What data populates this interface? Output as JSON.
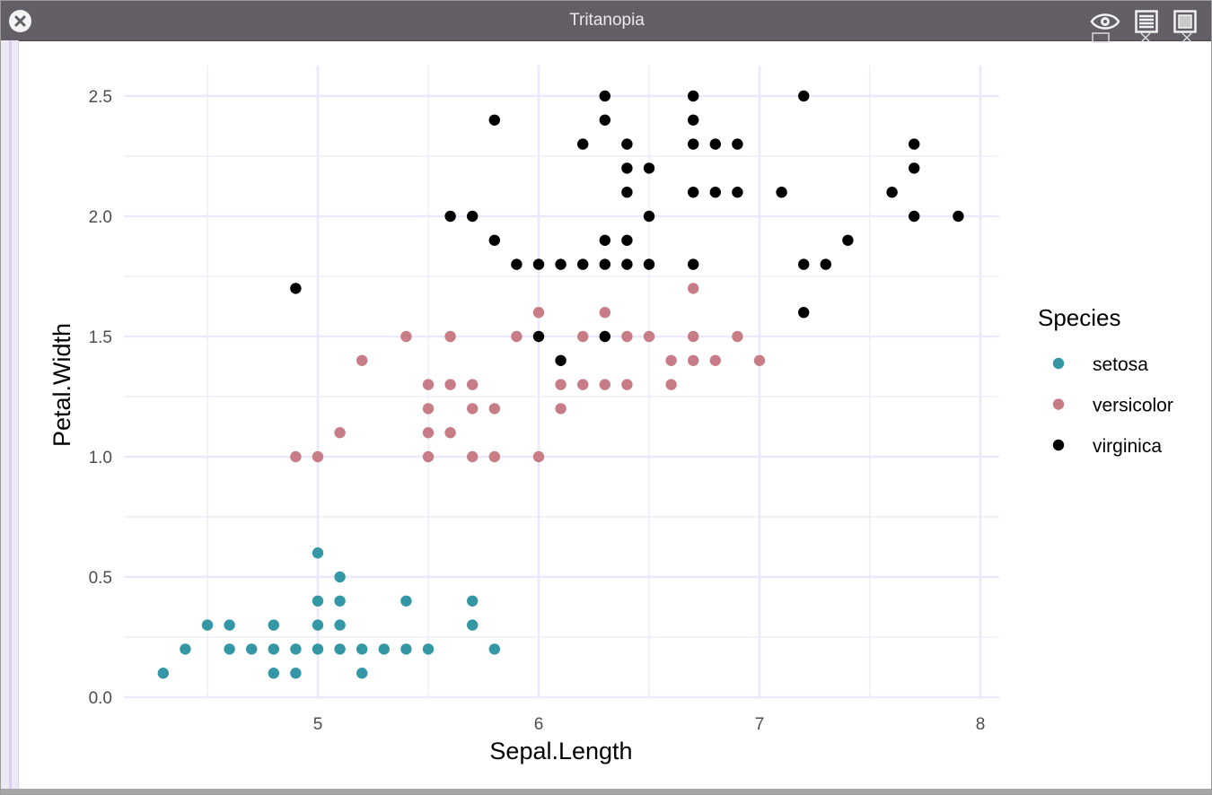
{
  "window": {
    "title": "Tritanopia",
    "icons": [
      "close-icon",
      "eye-icon",
      "list-view-icon",
      "window-icon"
    ]
  },
  "colors": {
    "setosa": "#3497a5",
    "versicolor": "#c87c86",
    "virginica": "#000000",
    "grid": "#ebe9fb"
  },
  "chart_data": {
    "type": "scatter",
    "title": "",
    "xlabel": "Sepal.Length",
    "ylabel": "Petal.Width",
    "xlim": [
      4.2,
      8.1
    ],
    "ylim": [
      0,
      2.6
    ],
    "xticks": [
      5,
      6,
      7,
      8
    ],
    "yticks": [
      0.0,
      0.5,
      1.0,
      1.5,
      2.0,
      2.5
    ],
    "xtick_labels": [
      "5",
      "6",
      "7",
      "8"
    ],
    "ytick_labels": [
      "0.0",
      "0.5",
      "1.0",
      "1.5",
      "2.0",
      "2.5"
    ],
    "grid": true,
    "legend": {
      "title": "Species",
      "position": "right"
    },
    "series": [
      {
        "name": "setosa",
        "points": [
          [
            4.3,
            0.1
          ],
          [
            4.4,
            0.2
          ],
          [
            4.5,
            0.3
          ],
          [
            4.6,
            0.3
          ],
          [
            4.6,
            0.2
          ],
          [
            4.7,
            0.2
          ],
          [
            4.8,
            0.3
          ],
          [
            4.8,
            0.2
          ],
          [
            4.8,
            0.1
          ],
          [
            4.9,
            0.2
          ],
          [
            4.9,
            0.1
          ],
          [
            5.0,
            0.6
          ],
          [
            5.0,
            0.4
          ],
          [
            5.0,
            0.3
          ],
          [
            5.0,
            0.2
          ],
          [
            5.1,
            0.5
          ],
          [
            5.1,
            0.4
          ],
          [
            5.1,
            0.3
          ],
          [
            5.1,
            0.2
          ],
          [
            5.2,
            0.2
          ],
          [
            5.2,
            0.1
          ],
          [
            5.3,
            0.2
          ],
          [
            5.4,
            0.4
          ],
          [
            5.4,
            0.2
          ],
          [
            5.5,
            0.2
          ],
          [
            5.7,
            0.4
          ],
          [
            5.7,
            0.3
          ],
          [
            5.8,
            0.2
          ]
        ]
      },
      {
        "name": "versicolor",
        "points": [
          [
            4.9,
            1.0
          ],
          [
            5.0,
            1.0
          ],
          [
            5.1,
            1.1
          ],
          [
            5.2,
            1.4
          ],
          [
            5.4,
            1.5
          ],
          [
            5.5,
            1.3
          ],
          [
            5.5,
            1.2
          ],
          [
            5.5,
            1.1
          ],
          [
            5.5,
            1.0
          ],
          [
            5.6,
            1.5
          ],
          [
            5.6,
            1.3
          ],
          [
            5.6,
            1.1
          ],
          [
            5.7,
            1.3
          ],
          [
            5.7,
            1.2
          ],
          [
            5.7,
            1.0
          ],
          [
            5.8,
            1.2
          ],
          [
            5.8,
            1.0
          ],
          [
            5.9,
            1.5
          ],
          [
            6.0,
            1.6
          ],
          [
            6.0,
            1.0
          ],
          [
            6.1,
            1.3
          ],
          [
            6.1,
            1.2
          ],
          [
            6.2,
            1.5
          ],
          [
            6.2,
            1.3
          ],
          [
            6.3,
            1.6
          ],
          [
            6.3,
            1.3
          ],
          [
            6.4,
            1.5
          ],
          [
            6.4,
            1.3
          ],
          [
            6.5,
            1.5
          ],
          [
            6.6,
            1.4
          ],
          [
            6.6,
            1.3
          ],
          [
            6.7,
            1.7
          ],
          [
            6.7,
            1.5
          ],
          [
            6.7,
            1.4
          ],
          [
            6.8,
            1.4
          ],
          [
            6.9,
            1.5
          ],
          [
            7.0,
            1.4
          ]
        ]
      },
      {
        "name": "virginica",
        "points": [
          [
            4.9,
            1.7
          ],
          [
            5.6,
            2.0
          ],
          [
            5.7,
            2.0
          ],
          [
            5.8,
            2.4
          ],
          [
            5.8,
            1.9
          ],
          [
            5.9,
            1.8
          ],
          [
            6.0,
            1.8
          ],
          [
            6.0,
            1.5
          ],
          [
            6.1,
            1.8
          ],
          [
            6.1,
            1.4
          ],
          [
            6.2,
            2.3
          ],
          [
            6.2,
            1.8
          ],
          [
            6.3,
            2.5
          ],
          [
            6.3,
            2.4
          ],
          [
            6.3,
            1.9
          ],
          [
            6.3,
            1.8
          ],
          [
            6.3,
            1.5
          ],
          [
            6.4,
            2.3
          ],
          [
            6.4,
            2.2
          ],
          [
            6.4,
            2.1
          ],
          [
            6.4,
            1.9
          ],
          [
            6.4,
            1.8
          ],
          [
            6.5,
            2.2
          ],
          [
            6.5,
            2.0
          ],
          [
            6.5,
            1.8
          ],
          [
            6.7,
            2.5
          ],
          [
            6.7,
            2.4
          ],
          [
            6.7,
            2.3
          ],
          [
            6.7,
            2.1
          ],
          [
            6.7,
            1.8
          ],
          [
            6.8,
            2.3
          ],
          [
            6.8,
            2.1
          ],
          [
            6.9,
            2.3
          ],
          [
            6.9,
            2.1
          ],
          [
            7.1,
            2.1
          ],
          [
            7.2,
            2.5
          ],
          [
            7.2,
            1.8
          ],
          [
            7.2,
            1.6
          ],
          [
            7.3,
            1.8
          ],
          [
            7.4,
            1.9
          ],
          [
            7.6,
            2.1
          ],
          [
            7.7,
            2.3
          ],
          [
            7.7,
            2.2
          ],
          [
            7.7,
            2.0
          ],
          [
            7.9,
            2.0
          ]
        ]
      }
    ]
  }
}
